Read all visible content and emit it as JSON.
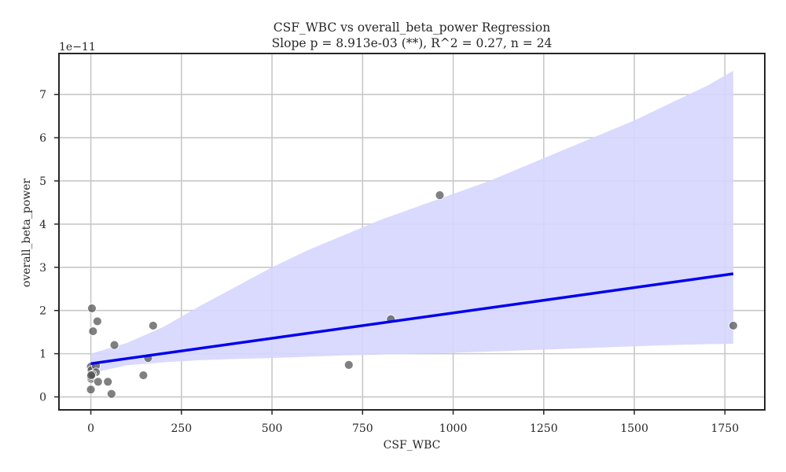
{
  "chart_data": {
    "type": "scatter",
    "title": "CSF_WBC vs overall_beta_power Regression",
    "subtitle": "Slope p = 8.913e-03 (**), R^2 = 0.27, n = 24",
    "xlabel": "CSF_WBC",
    "ylabel": "overall_beta_power",
    "y_offset_label": "1e−11",
    "xlim": [
      -88,
      1860
    ],
    "ylim": [
      -0.3,
      7.95
    ],
    "xticks": [
      0,
      250,
      500,
      750,
      1000,
      1250,
      1500,
      1750
    ],
    "yticks": [
      0,
      1,
      2,
      3,
      4,
      5,
      6,
      7
    ],
    "grid": true,
    "points": [
      {
        "x": 0,
        "y": 0.7
      },
      {
        "x": 2,
        "y": 0.62
      },
      {
        "x": 0,
        "y": 0.45
      },
      {
        "x": 1,
        "y": 0.42
      },
      {
        "x": 3,
        "y": 2.05
      },
      {
        "x": 6,
        "y": 1.52
      },
      {
        "x": 0,
        "y": 0.17
      },
      {
        "x": 14,
        "y": 0.72
      },
      {
        "x": 14,
        "y": 0.57
      },
      {
        "x": 18,
        "y": 1.75
      },
      {
        "x": 20,
        "y": 0.35
      },
      {
        "x": 47,
        "y": 0.35
      },
      {
        "x": 57,
        "y": 0.07
      },
      {
        "x": 65,
        "y": 1.2
      },
      {
        "x": 145,
        "y": 0.5
      },
      {
        "x": 158,
        "y": 0.9
      },
      {
        "x": 172,
        "y": 1.65
      },
      {
        "x": 712,
        "y": 0.74
      },
      {
        "x": 828,
        "y": 1.8
      },
      {
        "x": 963,
        "y": 4.67
      },
      {
        "x": 1773,
        "y": 1.65
      },
      {
        "x": 0,
        "y": 0.47
      },
      {
        "x": 4,
        "y": 0.52
      },
      {
        "x": 1,
        "y": 0.5
      }
    ],
    "regression": {
      "x": [
        0,
        1773
      ],
      "y": [
        0.77,
        2.85
      ]
    },
    "confidence_band": {
      "x": [
        0,
        100,
        200,
        300,
        400,
        500,
        600,
        700,
        800,
        900,
        1000,
        1100,
        1200,
        1300,
        1400,
        1500,
        1600,
        1700,
        1773
      ],
      "upper": [
        1.0,
        1.25,
        1.62,
        2.1,
        2.55,
        3.0,
        3.4,
        3.75,
        4.1,
        4.4,
        4.7,
        5.0,
        5.35,
        5.7,
        6.05,
        6.4,
        6.8,
        7.2,
        7.55
      ],
      "lower": [
        0.55,
        0.73,
        0.8,
        0.85,
        0.88,
        0.9,
        0.93,
        0.96,
        0.98,
        1.0,
        1.02,
        1.05,
        1.08,
        1.11,
        1.14,
        1.17,
        1.2,
        1.22,
        1.23
      ]
    },
    "colors": {
      "points": "#555555",
      "line": "#0000ee",
      "band": "#d6d6fe",
      "grid": "#c8c8c8",
      "axes": "#262626"
    }
  }
}
